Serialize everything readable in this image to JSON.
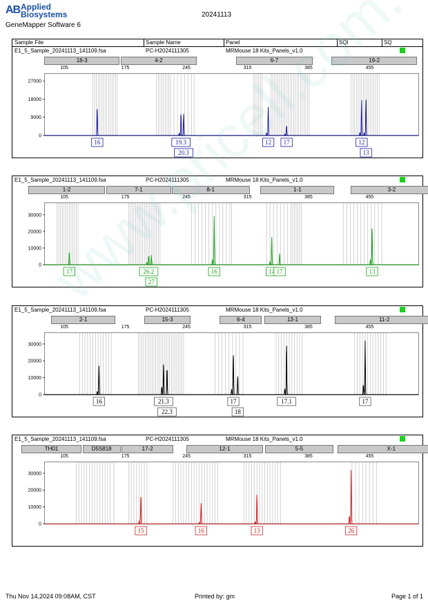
{
  "header": {
    "brand_mark": "AB",
    "brand_line1": "Applied",
    "brand_line2": "Biosystems",
    "software": "GeneMapper Software 6",
    "report_date": "20241113"
  },
  "table_header": {
    "sample_file": "Sample File",
    "sample_name": "Sample Name",
    "panel": "Panel",
    "sqi": "SQI",
    "sq": "SQ"
  },
  "footer": {
    "printed_on": "Thu Nov 14,2024 09:08AM, CST",
    "printed_by": "Printed by: gm",
    "page": "Page 1 of 1"
  },
  "watermark": "www.pricell.com.cn",
  "status_color": "#22cc22",
  "chart_data": [
    {
      "type": "line",
      "sample_file": "E1_5_Sample_20241113_141109.fsa",
      "sample_name": "PC-H2024111305",
      "panel": "MRMouse 18 Kits_Panels_v1.0",
      "color": "#1a1a9a",
      "xlim": [
        82,
        510
      ],
      "x_ticks": [
        105,
        175,
        245,
        315,
        385,
        455
      ],
      "ylim": [
        0,
        30500
      ],
      "y_ticks": [
        0,
        9000,
        18000,
        27000
      ],
      "markers": [
        {
          "label": "18-3",
          "start": 82,
          "end": 167
        },
        {
          "label": "4-2",
          "start": 170,
          "end": 255
        },
        {
          "label": "6-7",
          "start": 302,
          "end": 388
        },
        {
          "label": "19-2",
          "start": 411,
          "end": 508
        }
      ],
      "bins": [
        137,
        139,
        141,
        143,
        145,
        147,
        149,
        151,
        153,
        155,
        157,
        159,
        161,
        163,
        165,
        210,
        212,
        214,
        216,
        218,
        220,
        222,
        224,
        226,
        230,
        234,
        238,
        242,
        246,
        250,
        253,
        321,
        323,
        325,
        327,
        329,
        331,
        341,
        343,
        345,
        347,
        349,
        351,
        353,
        355,
        357,
        359,
        361,
        363,
        365,
        367,
        369,
        371,
        373,
        375,
        377,
        379,
        381,
        383,
        385,
        433,
        435,
        437,
        439,
        441,
        443,
        445,
        447,
        449,
        451,
        453,
        455,
        457,
        459,
        461,
        463,
        465
      ],
      "peaks": [
        {
          "x": 142,
          "height": 13500,
          "label": "16"
        },
        {
          "x": 238,
          "height": 11600,
          "label": "19.3"
        },
        {
          "x": 241,
          "height": 10900,
          "label": "20.3",
          "row": 2
        },
        {
          "x": 338,
          "height": 14800,
          "label": "12"
        },
        {
          "x": 359,
          "height": 5200,
          "label": "17"
        },
        {
          "x": 445,
          "height": 18300,
          "label": "12"
        },
        {
          "x": 450,
          "height": 18400,
          "label": "13",
          "row": 2
        }
      ],
      "minor_peaks": [
        {
          "x": 236,
          "height": 1100
        },
        {
          "x": 336,
          "height": 1400
        },
        {
          "x": 357,
          "height": 700
        },
        {
          "x": 443,
          "height": 1500
        },
        {
          "x": 448,
          "height": 1200
        }
      ]
    },
    {
      "type": "line",
      "sample_file": "E1_5_Sample_20241113_141109.fsa",
      "sample_name": "PC-H2024111305",
      "panel": "MRMouse 18 Kits_Panels_v1.0",
      "color": "#1aa31a",
      "xlim": [
        82,
        510
      ],
      "x_ticks": [
        105,
        175,
        245,
        315,
        385,
        455
      ],
      "ylim": [
        0,
        37000
      ],
      "y_ticks": [
        0,
        10000,
        20000,
        30000
      ],
      "markers": [
        {
          "label": "1-2",
          "start": 64,
          "end": 150
        },
        {
          "label": "7-1",
          "start": 153,
          "end": 226
        },
        {
          "label": "8-1",
          "start": 228,
          "end": 316
        },
        {
          "label": "1-1",
          "start": 330,
          "end": 413
        },
        {
          "label": "3-2",
          "start": 433,
          "end": 526
        }
      ],
      "bins": [
        96,
        98,
        100,
        102,
        104,
        106,
        108,
        110,
        112,
        114,
        116,
        118,
        120,
        178,
        180,
        182,
        184,
        186,
        188,
        190,
        192,
        194,
        196,
        198,
        200,
        202,
        204,
        206,
        208,
        210,
        212,
        214,
        250,
        254,
        258,
        262,
        266,
        270,
        274,
        278,
        282,
        286,
        290,
        294,
        296,
        336,
        340,
        344,
        348,
        352,
        356,
        360,
        364,
        366,
        368,
        370,
        372,
        374,
        376,
        424,
        428,
        432,
        436,
        440,
        444,
        448,
        452,
        456,
        460,
        464,
        468
      ],
      "peaks": [
        {
          "x": 110,
          "height": 8400,
          "label": "17"
        },
        {
          "x": 201,
          "height": 5600,
          "label": "26.2"
        },
        {
          "x": 204,
          "height": 5800,
          "label": "27",
          "row": 2
        },
        {
          "x": 276,
          "height": 29300,
          "label": "16"
        },
        {
          "x": 342,
          "height": 16500,
          "label": "14"
        },
        {
          "x": 351,
          "height": 6900,
          "label": "17"
        },
        {
          "x": 457,
          "height": 24400,
          "label": "13"
        }
      ],
      "minor_peaks": [
        {
          "x": 199,
          "height": 1600
        },
        {
          "x": 274,
          "height": 3500
        },
        {
          "x": 340,
          "height": 1800
        },
        {
          "x": 455,
          "height": 3200
        }
      ]
    },
    {
      "type": "line",
      "sample_file": "E1_5_Sample_20241113_141109.fsa",
      "sample_name": "PC-H2024111305",
      "panel": "MRMouse 18 Kits_Panels_v1.0",
      "color": "#000000",
      "xlim": [
        82,
        510
      ],
      "x_ticks": [
        105,
        175,
        245,
        315,
        385,
        455
      ],
      "ylim": [
        0,
        36500
      ],
      "y_ticks": [
        0,
        10000,
        20000,
        30000
      ],
      "markers": [
        {
          "label": "2-1",
          "start": 90,
          "end": 162
        },
        {
          "label": "15-3",
          "start": 197,
          "end": 248
        },
        {
          "label": "6-4",
          "start": 283,
          "end": 330
        },
        {
          "label": "13-1",
          "start": 334,
          "end": 398
        },
        {
          "label": "11-2",
          "start": 415,
          "end": 527
        }
      ],
      "bins": [
        122,
        125,
        128,
        131,
        134,
        137,
        140,
        143,
        146,
        149,
        152,
        155,
        158,
        189,
        191,
        193,
        195,
        197,
        199,
        201,
        203,
        205,
        207,
        209,
        211,
        213,
        215,
        217,
        219,
        221,
        223,
        225,
        227,
        229,
        231,
        233,
        235,
        237,
        239,
        241,
        277,
        281,
        285,
        289,
        293,
        297,
        301,
        305,
        309,
        347,
        350,
        353,
        356,
        359,
        362,
        365,
        368,
        371,
        374,
        377,
        437,
        440,
        443,
        446,
        449,
        452,
        455,
        458,
        461,
        464,
        467,
        470,
        473
      ],
      "peaks": [
        {
          "x": 144,
          "height": 17500,
          "label": "16"
        },
        {
          "x": 218,
          "height": 19100,
          "label": "21.3"
        },
        {
          "x": 222,
          "height": 17000,
          "label": "22.3",
          "row": 2
        },
        {
          "x": 298,
          "height": 26000,
          "label": "17"
        },
        {
          "x": 303,
          "height": 11900,
          "label": "18",
          "row": 2
        },
        {
          "x": 359,
          "height": 31800,
          "label": "17.1"
        },
        {
          "x": 449,
          "height": 32000,
          "label": "17"
        }
      ],
      "minor_peaks": [
        {
          "x": 142,
          "height": 2000
        },
        {
          "x": 216,
          "height": 4800
        },
        {
          "x": 296,
          "height": 3200
        },
        {
          "x": 357,
          "height": 3500
        },
        {
          "x": 447,
          "height": 6100
        }
      ]
    },
    {
      "type": "line",
      "sample_file": "E1_5_Sample_20241113_141109.fsa",
      "sample_name": "PC-H2024111305",
      "panel": "MRMouse 18 Kits_Panels_v1.0",
      "color": "#cc2222",
      "xlim": [
        82,
        510
      ],
      "x_ticks": [
        105,
        175,
        245,
        315,
        385,
        455
      ],
      "ylim": [
        0,
        36500
      ],
      "y_ticks": [
        0,
        10000,
        20000,
        30000
      ],
      "markers": [
        {
          "label": "TH01",
          "start": 56,
          "end": 123
        },
        {
          "label": "D5S818",
          "start": 126,
          "end": 168
        },
        {
          "label": "17-2",
          "start": 171,
          "end": 228
        },
        {
          "label": "12-1",
          "start": 245,
          "end": 331
        },
        {
          "label": "5-5",
          "start": 335,
          "end": 412
        },
        {
          "label": "X-1",
          "start": 418,
          "end": 540
        }
      ],
      "bins": [
        118,
        121,
        124,
        127,
        130,
        133,
        136,
        139,
        142,
        145,
        148,
        151,
        154,
        157,
        161,
        178,
        181,
        184,
        187,
        190,
        193,
        196,
        199,
        229,
        232,
        235,
        238,
        241,
        244,
        247,
        250,
        253,
        256,
        259,
        262,
        265,
        268,
        271,
        274,
        277,
        280,
        310,
        313,
        316,
        319,
        322,
        325,
        328,
        331,
        334,
        337,
        340,
        343,
        346,
        349,
        352,
        434,
        438,
        442,
        446,
        450,
        454,
        458,
        462
      ],
      "peaks": [
        {
          "x": 192,
          "height": 18000,
          "label": "15"
        },
        {
          "x": 261,
          "height": 12400,
          "label": "16"
        },
        {
          "x": 325,
          "height": 18500,
          "label": "13"
        },
        {
          "x": 433,
          "height": 32200,
          "label": "26"
        }
      ],
      "minor_peaks": [
        {
          "x": 190,
          "height": 1500
        },
        {
          "x": 259,
          "height": 900
        },
        {
          "x": 323,
          "height": 1200
        },
        {
          "x": 431,
          "height": 5000
        }
      ]
    }
  ]
}
